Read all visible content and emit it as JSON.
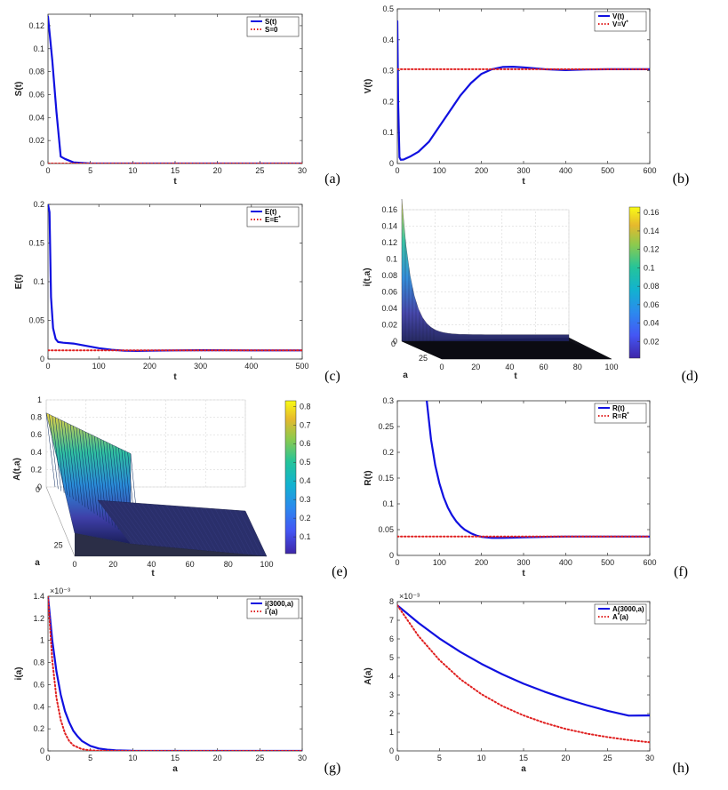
{
  "colors": {
    "blue": "#1010e0",
    "red": "#e02020"
  },
  "exponent_label": "×10⁻³",
  "panels": {
    "a": {
      "label": "(a)",
      "xlabel": "t",
      "ylabel": "S(t)",
      "xlim": [
        0,
        30
      ],
      "ylim": [
        0,
        0.13
      ],
      "xticks": [
        0,
        5,
        10,
        15,
        20,
        25,
        30
      ],
      "xtick_labels": [
        "0",
        "5",
        "10",
        "15",
        "20",
        "25",
        "30"
      ],
      "yticks": [
        0,
        0.02,
        0.04,
        0.06,
        0.08,
        0.1,
        0.12
      ],
      "ytick_labels": [
        "0",
        "0.02",
        "0.04",
        "0.06",
        "0.08",
        "0.1",
        "0.12"
      ],
      "legend": [
        "S(t)",
        "S=0"
      ]
    },
    "b": {
      "label": "(b)",
      "xlabel": "t",
      "ylabel": "V(t)",
      "xlim": [
        0,
        600
      ],
      "ylim": [
        0,
        0.5
      ],
      "xticks": [
        0,
        100,
        200,
        300,
        400,
        500,
        600
      ],
      "xtick_labels": [
        "0",
        "100",
        "200",
        "300",
        "400",
        "500",
        "600"
      ],
      "yticks": [
        0,
        0.1,
        0.2,
        0.3,
        0.4,
        0.5
      ],
      "ytick_labels": [
        "0",
        "0.1",
        "0.2",
        "0.3",
        "0.4",
        "0.5"
      ],
      "legend": [
        "V(t)",
        "V=V*"
      ]
    },
    "c": {
      "label": "(c)",
      "xlabel": "t",
      "ylabel": "E(t)",
      "xlim": [
        0,
        500
      ],
      "ylim": [
        0,
        0.2
      ],
      "xticks": [
        0,
        100,
        200,
        300,
        400,
        500
      ],
      "xtick_labels": [
        "0",
        "100",
        "200",
        "300",
        "400",
        "500"
      ],
      "yticks": [
        0,
        0.05,
        0.1,
        0.15,
        0.2
      ],
      "ytick_labels": [
        "0",
        "0.05",
        "0.1",
        "0.15",
        "0.2"
      ],
      "legend": [
        "E(t)",
        "E=E*"
      ]
    },
    "d": {
      "label": "(d)",
      "xlabel": "t",
      "ylabel": "i(t,a)",
      "alabel": "a",
      "zticks": [
        "0",
        "0.02",
        "0.04",
        "0.06",
        "0.08",
        "0.1",
        "0.12",
        "0.14",
        "0.16"
      ],
      "tticks": [
        "0",
        "20",
        "40",
        "60",
        "80",
        "100"
      ],
      "aticks": [
        "0",
        "25"
      ],
      "colorbar_ticks": [
        "0.02",
        "0.04",
        "0.06",
        "0.08",
        "0.1",
        "0.12",
        "0.14",
        "0.16"
      ]
    },
    "e": {
      "label": "(e)",
      "xlabel": "t",
      "ylabel": "A(t,a)",
      "alabel": "a",
      "zticks": [
        "0",
        "0.2",
        "0.4",
        "0.6",
        "0.8",
        "1"
      ],
      "tticks": [
        "0",
        "20",
        "40",
        "60",
        "80",
        "100"
      ],
      "aticks": [
        "0",
        "25"
      ],
      "colorbar_ticks": [
        "0.1",
        "0.2",
        "0.3",
        "0.4",
        "0.5",
        "0.6",
        "0.7",
        "0.8"
      ]
    },
    "f": {
      "label": "(f)",
      "xlabel": "t",
      "ylabel": "R(t)",
      "xlim": [
        0,
        600
      ],
      "ylim": [
        0,
        0.3
      ],
      "xticks": [
        0,
        100,
        200,
        300,
        400,
        500,
        600
      ],
      "xtick_labels": [
        "0",
        "100",
        "200",
        "300",
        "400",
        "500",
        "600"
      ],
      "yticks": [
        0,
        0.05,
        0.1,
        0.15,
        0.2,
        0.25,
        0.3
      ],
      "ytick_labels": [
        "0",
        "0.05",
        "0.1",
        "0.15",
        "0.2",
        "0.25",
        "0.3"
      ],
      "legend": [
        "R(t)",
        "R=R*"
      ]
    },
    "g": {
      "label": "(g)",
      "xlabel": "a",
      "ylabel": "i(a)",
      "xlim": [
        0,
        30
      ],
      "ylim": [
        0,
        1.4
      ],
      "xticks": [
        0,
        5,
        10,
        15,
        20,
        25,
        30
      ],
      "xtick_labels": [
        "0",
        "5",
        "10",
        "15",
        "20",
        "25",
        "30"
      ],
      "yticks": [
        0,
        0.2,
        0.4,
        0.6,
        0.8,
        1,
        1.2,
        1.4
      ],
      "ytick_labels": [
        "0",
        "0.2",
        "0.4",
        "0.6",
        "0.8",
        "1",
        "1.2",
        "1.4"
      ],
      "legend": [
        "i(3000,a)",
        "i*(a)"
      ]
    },
    "h": {
      "label": "(h)",
      "xlabel": "a",
      "ylabel": "A(a)",
      "xlim": [
        0,
        30
      ],
      "ylim": [
        0,
        8
      ],
      "xticks": [
        0,
        5,
        10,
        15,
        20,
        25,
        30
      ],
      "xtick_labels": [
        "0",
        "5",
        "10",
        "15",
        "20",
        "25",
        "30"
      ],
      "yticks": [
        0,
        1,
        2,
        3,
        4,
        5,
        6,
        7,
        8
      ],
      "ytick_labels": [
        "0",
        "1",
        "2",
        "3",
        "4",
        "5",
        "6",
        "7",
        "8"
      ],
      "legend": [
        "A(3000,a)",
        "A*(a)"
      ]
    }
  },
  "chart_data": [
    {
      "panel": "a",
      "type": "line",
      "title": "",
      "xlabel": "t",
      "ylabel": "S(t)",
      "xlim": [
        0,
        30
      ],
      "ylim": [
        0,
        0.13
      ],
      "series": [
        {
          "name": "S(t)",
          "style": "solid",
          "x": [
            0,
            0.5,
            1,
            1.5,
            2,
            3,
            5,
            10,
            15,
            20,
            25,
            30
          ],
          "y": [
            0.128,
            0.09,
            0.045,
            0.006,
            0.004,
            0.001,
            0,
            0,
            0,
            0,
            0,
            0
          ]
        },
        {
          "name": "S=0",
          "style": "dotted",
          "x": [
            0,
            30
          ],
          "y": [
            0,
            0
          ]
        }
      ]
    },
    {
      "panel": "b",
      "type": "line",
      "title": "",
      "xlabel": "t",
      "ylabel": "V(t)",
      "xlim": [
        0,
        600
      ],
      "ylim": [
        0,
        0.5
      ],
      "series": [
        {
          "name": "V(t)",
          "style": "solid",
          "x": [
            0,
            2,
            5,
            8,
            15,
            30,
            50,
            75,
            100,
            125,
            150,
            175,
            200,
            225,
            250,
            275,
            300,
            350,
            400,
            450,
            500,
            550,
            600
          ],
          "y": [
            0.46,
            0.2,
            0.02,
            0.012,
            0.013,
            0.022,
            0.038,
            0.07,
            0.12,
            0.17,
            0.22,
            0.26,
            0.29,
            0.305,
            0.312,
            0.313,
            0.311,
            0.305,
            0.302,
            0.304,
            0.305,
            0.305,
            0.305
          ]
        },
        {
          "name": "V=V*",
          "style": "dotted",
          "x": [
            0,
            600
          ],
          "y": [
            0.305,
            0.305
          ]
        }
      ]
    },
    {
      "panel": "c",
      "type": "line",
      "title": "",
      "xlabel": "t",
      "ylabel": "E(t)",
      "xlim": [
        0,
        500
      ],
      "ylim": [
        0,
        0.2
      ],
      "series": [
        {
          "name": "E(t)",
          "style": "solid",
          "x": [
            0,
            3,
            6,
            10,
            15,
            20,
            30,
            50,
            75,
            100,
            125,
            150,
            175,
            200,
            250,
            300,
            350,
            400,
            450,
            500
          ],
          "y": [
            0.2,
            0.19,
            0.08,
            0.04,
            0.026,
            0.022,
            0.021,
            0.02,
            0.017,
            0.014,
            0.012,
            0.0108,
            0.0105,
            0.0108,
            0.0112,
            0.0114,
            0.0113,
            0.0112,
            0.0112,
            0.0112
          ]
        },
        {
          "name": "E=E*",
          "style": "dotted",
          "x": [
            0,
            500
          ],
          "y": [
            0.0112,
            0.0112
          ]
        }
      ]
    },
    {
      "panel": "d",
      "type": "surface",
      "title": "",
      "xlabel": "t",
      "ylabel": "a",
      "zlabel": "i(t,a)",
      "xlim": [
        0,
        100
      ],
      "ylim": [
        0,
        25
      ],
      "zlim": [
        0,
        0.16
      ],
      "peak": 0.165
    },
    {
      "panel": "e",
      "type": "surface",
      "title": "",
      "xlabel": "t",
      "ylabel": "a",
      "zlabel": "A(t,a)",
      "xlim": [
        0,
        100
      ],
      "ylim": [
        0,
        25
      ],
      "zlim": [
        0,
        1
      ],
      "peak": 0.85
    },
    {
      "panel": "f",
      "type": "line",
      "title": "",
      "xlabel": "t",
      "ylabel": "R(t)",
      "xlim": [
        0,
        600
      ],
      "ylim": [
        0,
        0.3
      ],
      "series": [
        {
          "name": "R(t)",
          "style": "solid",
          "x": [
            70,
            80,
            90,
            100,
            110,
            120,
            130,
            140,
            150,
            160,
            175,
            190,
            200,
            225,
            250,
            275,
            300,
            350,
            400,
            450,
            500,
            550,
            600
          ],
          "y": [
            0.3,
            0.225,
            0.175,
            0.14,
            0.113,
            0.093,
            0.078,
            0.066,
            0.057,
            0.05,
            0.043,
            0.038,
            0.036,
            0.034,
            0.034,
            0.0345,
            0.035,
            0.036,
            0.0365,
            0.0365,
            0.0365,
            0.0365,
            0.0365
          ]
        },
        {
          "name": "R=R*",
          "style": "dotted",
          "x": [
            0,
            600
          ],
          "y": [
            0.0365,
            0.0365
          ]
        }
      ]
    },
    {
      "panel": "g",
      "type": "line",
      "title": "",
      "xlabel": "a",
      "ylabel": "i(a)",
      "y_multiplier": "1e-3",
      "xlim": [
        0,
        30
      ],
      "ylim": [
        0,
        1.4
      ],
      "series": [
        {
          "name": "i(3000,a)",
          "style": "solid",
          "x": [
            0,
            0.5,
            1,
            1.5,
            2,
            2.5,
            3,
            3.5,
            4,
            5,
            6,
            7,
            8,
            10,
            15,
            20,
            25,
            30
          ],
          "y": [
            1.4,
            1.0,
            0.72,
            0.51,
            0.36,
            0.26,
            0.18,
            0.13,
            0.09,
            0.045,
            0.022,
            0.011,
            0.006,
            0.002,
            0,
            0,
            0,
            0
          ]
        },
        {
          "name": "i*(a)",
          "style": "dotted",
          "x": [
            0,
            0.5,
            1,
            1.5,
            2,
            2.5,
            3,
            4,
            5,
            6,
            10,
            15,
            20,
            25,
            30
          ],
          "y": [
            1.4,
            0.82,
            0.48,
            0.28,
            0.16,
            0.09,
            0.05,
            0.016,
            0.005,
            0.002,
            0,
            0,
            0,
            0,
            0
          ]
        }
      ]
    },
    {
      "panel": "h",
      "type": "line",
      "title": "",
      "xlabel": "a",
      "ylabel": "A(a)",
      "y_multiplier": "1e-3",
      "xlim": [
        0,
        30
      ],
      "ylim": [
        0,
        8
      ],
      "series": [
        {
          "name": "A(3000,a)",
          "style": "solid",
          "x": [
            0,
            2.5,
            5,
            7.5,
            10,
            12.5,
            15,
            17.5,
            20,
            22.5,
            25,
            27.5,
            30
          ],
          "y": [
            7.8,
            6.86,
            6.03,
            5.3,
            4.66,
            4.1,
            3.6,
            3.17,
            2.79,
            2.45,
            2.15,
            1.89,
            1.9
          ]
        },
        {
          "name": "A*(a)",
          "style": "dotted",
          "x": [
            0,
            2.5,
            5,
            7.5,
            10,
            12.5,
            15,
            17.5,
            20,
            22.5,
            25,
            27.5,
            30
          ],
          "y": [
            7.8,
            6.16,
            4.87,
            3.84,
            3.04,
            2.4,
            1.9,
            1.5,
            1.18,
            0.93,
            0.74,
            0.58,
            0.46
          ]
        }
      ]
    }
  ]
}
